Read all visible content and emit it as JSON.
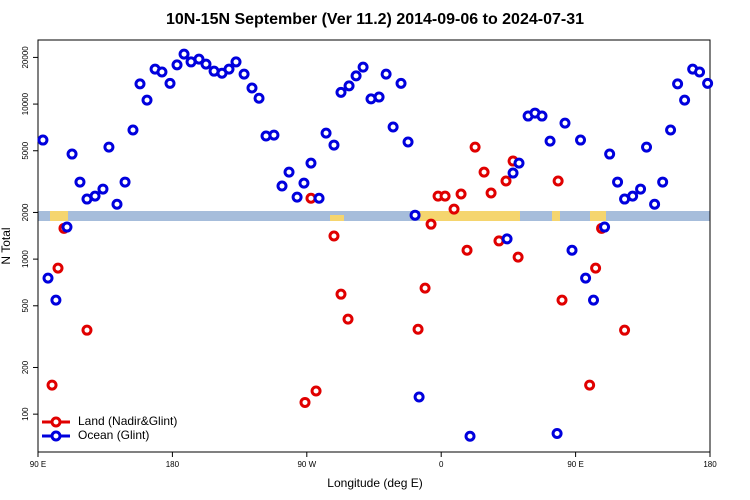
{
  "chart_data": {
    "type": "scatter",
    "title": "10N-15N September (Ver 11.2)   2014-09-06 to 2024-07-31",
    "x_label": "Longitude (deg E)",
    "y_label": "N Total",
    "xlim": [
      90,
      540
    ],
    "xticks": [
      {
        "value": 90,
        "label": "90 E"
      },
      180,
      {
        "value": 270,
        "label": "90 W"
      },
      {
        "value": 360,
        "label": "0"
      },
      {
        "value": 450,
        "label": "90 E"
      },
      {
        "value": 540,
        "label": "180"
      }
    ],
    "ylim": [
      57,
      25900
    ],
    "log_y": true,
    "yticks": [
      100,
      200,
      500,
      1000,
      2000,
      5000,
      10000,
      20000
    ],
    "legend": "lower left",
    "series": [
      {
        "name": "Land (Nadir&Glint)",
        "color": "#e00000",
        "x": [
          99.4,
          103.4,
          107.4,
          122.8,
          268.8,
          272.8,
          276.2,
          288.2,
          292.9,
          297.6,
          344.5,
          349.2,
          353.2,
          357.9,
          362.6,
          368.6,
          373.3,
          377.3,
          382.7,
          388.7,
          393.4,
          398.7,
          403.4,
          408.1,
          411.5,
          438.3,
          440.9,
          459.4,
          463.4,
          467.4,
          482.8
        ],
        "values": [
          154,
          875,
          1580,
          348,
          119,
          2470,
          141,
          1410,
          594,
          410,
          353,
          650,
          1680,
          2550,
          2550,
          2100,
          2630,
          1140,
          5280,
          3640,
          2670,
          1310,
          3190,
          4290,
          1030,
          3190,
          544,
          154,
          875,
          1580,
          348
        ]
      },
      {
        "name": "Ocean (Glint)",
        "color": "#0000dd",
        "x": [
          93.3,
          96.7,
          102,
          109.4,
          112.8,
          118.1,
          122.8,
          128.2,
          133.5,
          137.5,
          142.9,
          148.3,
          153.6,
          158.3,
          163,
          168.4,
          173,
          178.4,
          183.1,
          187.8,
          192.5,
          197.8,
          202.5,
          207.9,
          213.2,
          217.9,
          222.6,
          228,
          233.3,
          238,
          242.7,
          248,
          253.4,
          258.1,
          263.5,
          268.1,
          272.8,
          278.2,
          282.9,
          288.2,
          292.9,
          298.3,
          303,
          307.7,
          313,
          318.4,
          323.1,
          327.8,
          333.1,
          337.8,
          342.5,
          345.2,
          379.3,
          404.1,
          408.1,
          412.1,
          418.2,
          422.8,
          427.5,
          432.9,
          437.6,
          442.9,
          447.6,
          453.3,
          456.7,
          462,
          469.4,
          472.8,
          478.1,
          482.8,
          488.2,
          493.5,
          497.5,
          502.9,
          508.3,
          513.6,
          518.3,
          523,
          528.4,
          533,
          538.4
        ],
        "values": [
          5860,
          754,
          544,
          1610,
          4760,
          3140,
          2440,
          2550,
          2830,
          5280,
          2260,
          3140,
          6800,
          13500,
          10600,
          16800,
          16100,
          13600,
          17900,
          21000,
          18700,
          19500,
          18100,
          16300,
          15800,
          16800,
          18700,
          15600,
          12700,
          10900,
          6220,
          6310,
          2960,
          3640,
          2510,
          3090,
          4160,
          2470,
          6500,
          5440,
          11900,
          13100,
          15200,
          17300,
          10800,
          11100,
          15600,
          7110,
          13600,
          5690,
          1920,
          129,
          72,
          1350,
          3590,
          4160,
          8370,
          8750,
          8370,
          5770,
          75,
          7540,
          1140,
          5860,
          754,
          544,
          1610,
          4760,
          3140,
          2440,
          2550,
          2830,
          5280,
          2260,
          3140,
          6800,
          13500,
          10600,
          16800,
          16100,
          13600
        ]
      }
    ]
  }
}
